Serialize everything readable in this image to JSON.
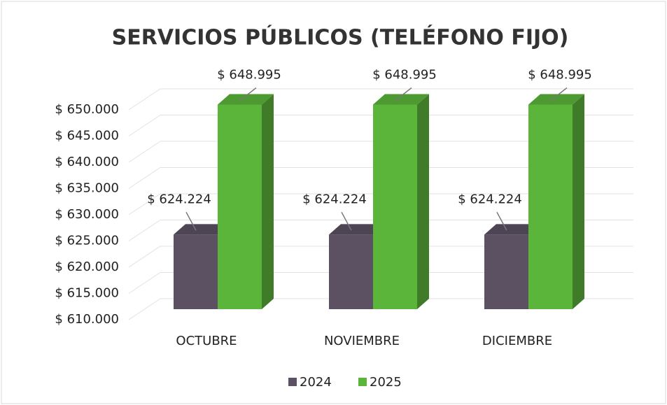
{
  "chart_data": {
    "type": "bar3d",
    "title": "SERVICIOS PÚBLICOS (TELÉFONO FIJO)",
    "categories": [
      "OCTUBRE",
      "NOVIEMBRE",
      "DICIEMBRE"
    ],
    "series": [
      {
        "name": "2024",
        "color": "#5b5163",
        "values": [
          624224,
          624224,
          624224
        ],
        "value_labels": [
          "$ 624.224",
          "$ 624.224",
          "$ 624.224"
        ]
      },
      {
        "name": "2025",
        "color": "#5cb53b",
        "values": [
          648995,
          648995,
          648995
        ],
        "value_labels": [
          "$ 648.995",
          "$ 648.995",
          "$ 648.995"
        ]
      }
    ],
    "ylim": [
      610000,
      650000
    ],
    "yticks": [
      {
        "value": 610000,
        "label": "$ 610.000"
      },
      {
        "value": 615000,
        "label": "$ 615.000"
      },
      {
        "value": 620000,
        "label": "$ 620.000"
      },
      {
        "value": 625000,
        "label": "$ 625.000"
      },
      {
        "value": 630000,
        "label": "$ 630.000"
      },
      {
        "value": 635000,
        "label": "$ 635.000"
      },
      {
        "value": 640000,
        "label": "$ 640.000"
      },
      {
        "value": 645000,
        "label": "$ 645.000"
      },
      {
        "value": 650000,
        "label": "$ 650.000"
      }
    ],
    "grid": true,
    "legend": "bottom"
  }
}
